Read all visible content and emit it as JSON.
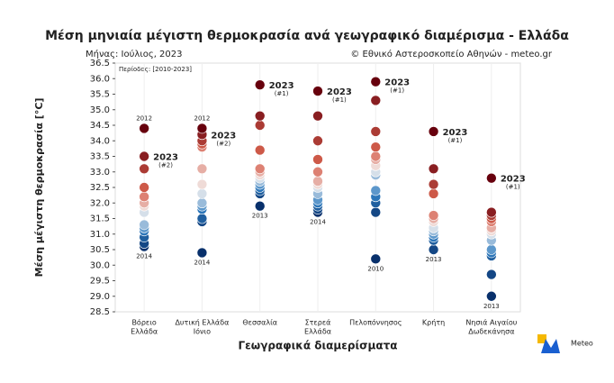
{
  "chart_data": {
    "type": "strip",
    "title": "Μέση μηνιαία μέγιστη θερμοκρασία ανά γεωγραφικό διαμέρισμα - Ελλάδα",
    "subtitle": "Μήνας: Ιούλιος, 2023",
    "credit": "© Εθνικό Αστεροσκοπείο Αθηνών - meteo.gr",
    "period": "Περίοδος: [2010-2023]",
    "xlabel": "Γεωγραφικά διαμερίσματα",
    "ylabel": "Μέση μέγιστη θερμοκρασία [°C]",
    "logo": "Meteo",
    "colormap": [
      "#08306b",
      "#2f7cc0",
      "#f3f1f0",
      "#d6604d",
      "#67000d"
    ],
    "grid": true,
    "ylim": [
      28.5,
      36.5
    ],
    "yticks": [
      28.5,
      {
        "value": 29,
        "label": "29.0"
      },
      29.5,
      {
        "value": 30,
        "label": "30.0"
      },
      30.5,
      {
        "value": 31,
        "label": "31.0"
      },
      31.5,
      {
        "value": 32,
        "label": "32.0"
      },
      32.5,
      {
        "value": 33,
        "label": "33.0"
      },
      33.5,
      {
        "value": 34,
        "label": "34.0"
      },
      34.5,
      {
        "value": 35,
        "label": "35.0"
      },
      35.5,
      {
        "value": 36,
        "label": "36.0"
      },
      36.5
    ],
    "categories": [
      [
        "Βόρειο",
        "Ελλάδα"
      ],
      [
        "Δυτική Ελλάδα",
        "Ιόνιο"
      ],
      [
        "Θεσσαλία"
      ],
      [
        "Στερεά",
        "Ελλάδα"
      ],
      [
        "Πελοπόννησος"
      ],
      [
        "Κρήτη"
      ],
      [
        "Νησιά Αιγαίου",
        "Δωδεκάνησα"
      ]
    ],
    "values": [
      [
        34.4,
        33.5,
        33.1,
        32.5,
        32.2,
        32.0,
        31.9,
        31.7,
        31.3,
        31.2,
        31.1,
        30.9,
        30.7,
        30.6
      ],
      [
        34.4,
        34.2,
        34.0,
        33.9,
        33.8,
        33.1,
        32.6,
        32.3,
        32.0,
        31.9,
        31.8,
        31.5,
        31.4,
        30.4
      ],
      [
        35.8,
        34.8,
        34.5,
        33.7,
        33.1,
        33.0,
        32.9,
        32.8,
        32.7,
        32.6,
        32.5,
        32.4,
        32.3,
        31.9
      ],
      [
        35.6,
        34.8,
        34.0,
        33.4,
        33.0,
        32.7,
        32.6,
        32.5,
        32.3,
        32.1,
        32.0,
        31.9,
        31.8,
        31.7
      ],
      [
        35.9,
        35.3,
        34.3,
        33.8,
        33.5,
        33.4,
        33.2,
        33.0,
        32.9,
        32.4,
        32.2,
        32.0,
        31.7,
        30.2
      ],
      [
        34.3,
        33.1,
        32.6,
        32.3,
        31.6,
        31.5,
        31.4,
        31.2,
        31.1,
        31.0,
        30.9,
        30.8,
        30.5,
        30.5
      ],
      [
        32.8,
        31.7,
        31.6,
        31.5,
        31.4,
        31.2,
        31.1,
        31.0,
        30.8,
        30.5,
        30.4,
        30.3,
        29.7,
        29.0
      ]
    ],
    "annotations": [
      {
        "category": 0,
        "value": 34.4,
        "label": "2012",
        "position": "above"
      },
      {
        "category": 0,
        "value": 33.5,
        "label": "2023",
        "rank": "(#2)",
        "position": "right"
      },
      {
        "category": 0,
        "value": 30.6,
        "label": "2014",
        "position": "below"
      },
      {
        "category": 1,
        "value": 34.4,
        "label": "2012",
        "position": "above"
      },
      {
        "category": 1,
        "value": 34.2,
        "label": "2023",
        "rank": "(#2)",
        "position": "right"
      },
      {
        "category": 1,
        "value": 30.4,
        "label": "2014",
        "position": "below"
      },
      {
        "category": 2,
        "value": 35.8,
        "label": "2023",
        "rank": "(#1)",
        "position": "right"
      },
      {
        "category": 2,
        "value": 31.9,
        "label": "2013",
        "position": "below"
      },
      {
        "category": 3,
        "value": 35.6,
        "label": "2023",
        "rank": "(#1)",
        "position": "right"
      },
      {
        "category": 3,
        "value": 31.7,
        "label": "2014",
        "position": "below"
      },
      {
        "category": 4,
        "value": 35.9,
        "label": "2023",
        "rank": "(#1)",
        "position": "right"
      },
      {
        "category": 4,
        "value": 30.2,
        "label": "2010",
        "position": "below"
      },
      {
        "category": 5,
        "value": 34.3,
        "label": "2023",
        "rank": "(#1)",
        "position": "right"
      },
      {
        "category": 5,
        "value": 30.5,
        "label": "2013",
        "position": "below"
      },
      {
        "category": 6,
        "value": 32.8,
        "label": "2023",
        "rank": "(#1)",
        "position": "right"
      },
      {
        "category": 6,
        "value": 29.0,
        "label": "2013",
        "position": "below"
      }
    ]
  }
}
